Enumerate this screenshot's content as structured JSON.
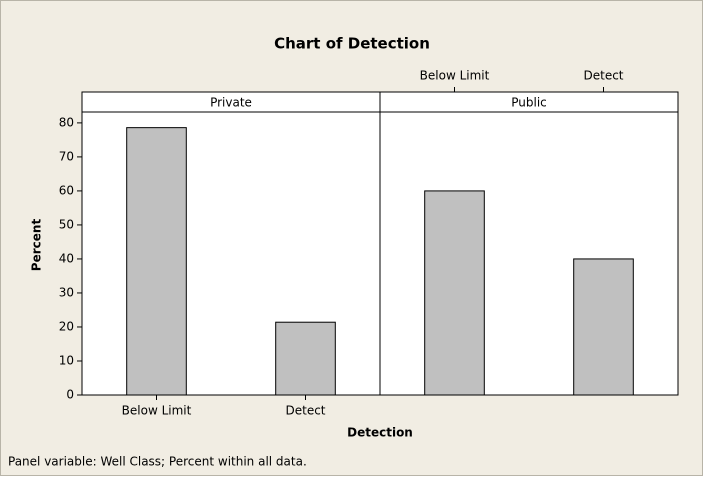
{
  "chart_data": {
    "type": "bar",
    "title": "Chart of Detection",
    "categories": [
      "Below Limit",
      "Detect"
    ],
    "series": [
      {
        "name": "Private",
        "color": "#c0c0c0",
        "values": [
          78.6,
          21.4
        ]
      },
      {
        "name": "Public",
        "color": "#c0c0c0",
        "values": [
          60,
          40
        ]
      }
    ],
    "ylim": [
      0,
      83.2
    ],
    "yticks": [
      0,
      10,
      20,
      30,
      40,
      50,
      60,
      70,
      80
    ],
    "xlabel": "Detection",
    "ylabel": "Percent",
    "footnote": "Panel variable: Well Class;  Percent within all data."
  }
}
